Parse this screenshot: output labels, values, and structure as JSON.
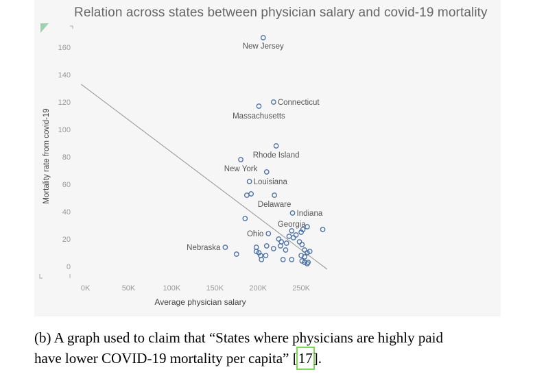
{
  "chart_data": {
    "type": "scatter",
    "title": "Relation across states between physician salary and covid-19 mortality",
    "xlabel": "Average physician salary",
    "ylabel": "Mortality rate from covid-19",
    "xlim": [
      -10000,
      300000
    ],
    "ylim": [
      -7,
      172
    ],
    "x_ticks": [
      "0K",
      "50K",
      "100K",
      "150K",
      "200K",
      "250K"
    ],
    "x_tick_values": [
      0,
      50000,
      100000,
      150000,
      200000,
      250000
    ],
    "y_ticks": [
      "0",
      "20",
      "40",
      "60",
      "80",
      "100",
      "120",
      "140",
      "160"
    ],
    "y_tick_values": [
      0,
      20,
      40,
      60,
      80,
      100,
      120,
      140,
      160
    ],
    "grid": false,
    "legend": "none",
    "trendline": {
      "x": [
        -5000,
        280000
      ],
      "y": [
        133,
        -2
      ]
    },
    "points": [
      {
        "x": 206000,
        "y": 167,
        "label": "New Jersey"
      },
      {
        "x": 218000,
        "y": 120,
        "label": "Connecticut"
      },
      {
        "x": 201000,
        "y": 117,
        "label": "Massachusetts"
      },
      {
        "x": 221000,
        "y": 88,
        "label": "Rhode Island"
      },
      {
        "x": 180000,
        "y": 78,
        "label": "New York"
      },
      {
        "x": 210000,
        "y": 69,
        "label": ""
      },
      {
        "x": 190000,
        "y": 62,
        "label": "Louisiana"
      },
      {
        "x": 187000,
        "y": 52,
        "label": ""
      },
      {
        "x": 192000,
        "y": 53,
        "label": ""
      },
      {
        "x": 219000,
        "y": 52,
        "label": "Delaware"
      },
      {
        "x": 240000,
        "y": 39,
        "label": "Indiana"
      },
      {
        "x": 185000,
        "y": 35,
        "label": ""
      },
      {
        "x": 275000,
        "y": 27,
        "label": ""
      },
      {
        "x": 257000,
        "y": 29,
        "label": ""
      },
      {
        "x": 239000,
        "y": 26,
        "label": "Georgia"
      },
      {
        "x": 250000,
        "y": 25,
        "label": ""
      },
      {
        "x": 252000,
        "y": 27,
        "label": ""
      },
      {
        "x": 244000,
        "y": 23,
        "label": ""
      },
      {
        "x": 236000,
        "y": 22,
        "label": ""
      },
      {
        "x": 241000,
        "y": 21,
        "label": ""
      },
      {
        "x": 212000,
        "y": 24,
        "label": "Ohio"
      },
      {
        "x": 224000,
        "y": 20,
        "label": ""
      },
      {
        "x": 227000,
        "y": 18,
        "label": ""
      },
      {
        "x": 233000,
        "y": 17,
        "label": ""
      },
      {
        "x": 248000,
        "y": 18,
        "label": ""
      },
      {
        "x": 251000,
        "y": 16,
        "label": ""
      },
      {
        "x": 162000,
        "y": 14,
        "label": "Nebraska"
      },
      {
        "x": 198000,
        "y": 14,
        "label": ""
      },
      {
        "x": 210000,
        "y": 15,
        "label": ""
      },
      {
        "x": 218000,
        "y": 13,
        "label": ""
      },
      {
        "x": 226000,
        "y": 15,
        "label": ""
      },
      {
        "x": 232000,
        "y": 12,
        "label": ""
      },
      {
        "x": 254000,
        "y": 12,
        "label": ""
      },
      {
        "x": 260000,
        "y": 11,
        "label": ""
      },
      {
        "x": 257000,
        "y": 10,
        "label": ""
      },
      {
        "x": 198000,
        "y": 11,
        "label": ""
      },
      {
        "x": 201000,
        "y": 10,
        "label": ""
      },
      {
        "x": 175000,
        "y": 9,
        "label": ""
      },
      {
        "x": 203000,
        "y": 8,
        "label": ""
      },
      {
        "x": 209000,
        "y": 8,
        "label": ""
      },
      {
        "x": 250000,
        "y": 8,
        "label": ""
      },
      {
        "x": 254000,
        "y": 7,
        "label": ""
      },
      {
        "x": 204000,
        "y": 5,
        "label": ""
      },
      {
        "x": 229000,
        "y": 5,
        "label": ""
      },
      {
        "x": 239000,
        "y": 5,
        "label": ""
      },
      {
        "x": 251000,
        "y": 4,
        "label": ""
      },
      {
        "x": 254000,
        "y": 3,
        "label": ""
      },
      {
        "x": 257000,
        "y": 2,
        "label": ""
      },
      {
        "x": 258000,
        "y": 3,
        "label": ""
      }
    ]
  },
  "caption": {
    "line1": "(b) A graph used to claim that “States where physicians are highly paid",
    "line2_before": "have lower COVID-19 mortality per capita” ",
    "bracket_open": "[",
    "ref_number": "17",
    "bracket_close": "].",
    "ref_outline_color": "#7ed957"
  },
  "colors": {
    "marker_stroke": "#4a6fa5",
    "trendline": "#9a9a9a",
    "text": "#555555",
    "background": "#f6f6f6"
  }
}
